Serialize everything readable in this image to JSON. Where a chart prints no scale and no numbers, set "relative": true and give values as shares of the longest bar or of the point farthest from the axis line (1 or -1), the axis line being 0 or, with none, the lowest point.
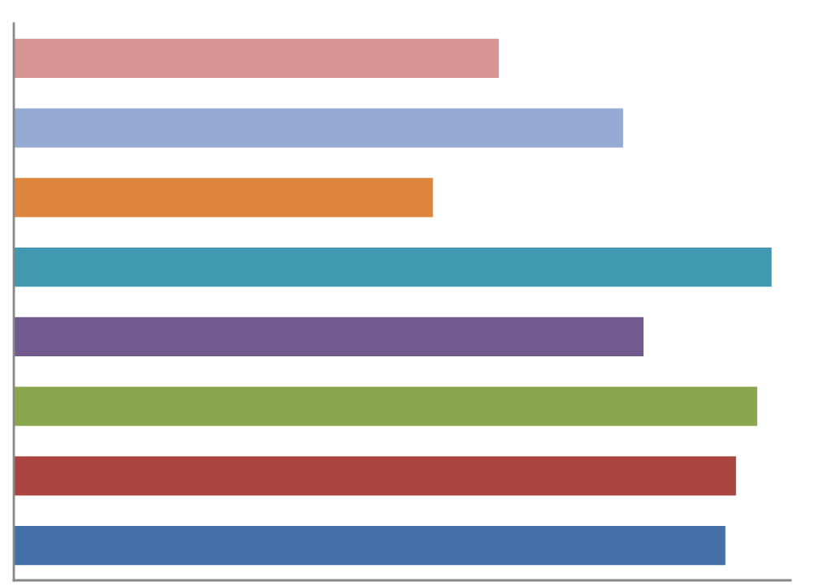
{
  "chart_data": {
    "type": "bar",
    "orientation": "horizontal",
    "relative": true,
    "categories": [
      null,
      null,
      null,
      null,
      null,
      null,
      null,
      null
    ],
    "values": [
      0.64,
      0.804,
      0.553,
      1,
      0.831,
      0.981,
      0.953,
      0.939
    ],
    "colors": [
      "#d79594",
      "#95abd3",
      "#dd843d",
      "#4099b0",
      "#715a8e",
      "#8ba74e",
      "#ab4542",
      "#4471a8"
    ]
  }
}
